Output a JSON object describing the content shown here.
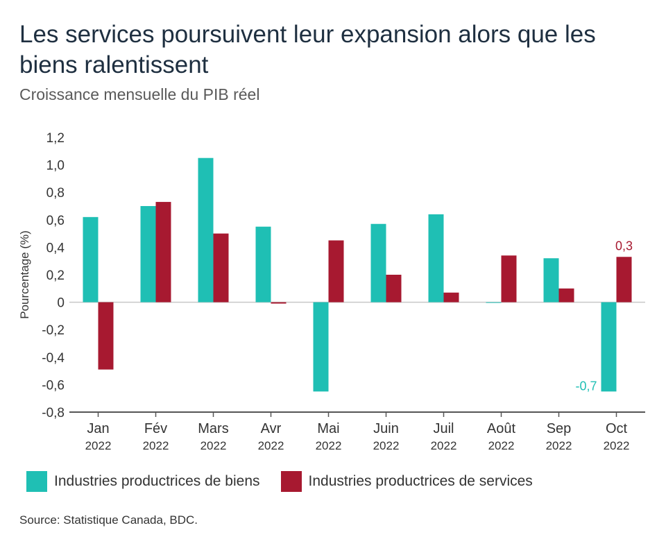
{
  "title": "Les services poursuivent leur expansion alors que les biens ralentissent",
  "subtitle": "Croissance mensuelle du PIB réel",
  "source": "Source: Statistique Canada, BDC.",
  "colors": {
    "goods": "#1fbfb4",
    "services": "#a71930"
  },
  "chart_data": {
    "type": "bar",
    "ylabel": "Pourcentage (%)",
    "ylim": [
      -0.8,
      1.2
    ],
    "yticks": [
      -0.8,
      -0.6,
      -0.4,
      -0.2,
      0,
      0.2,
      0.4,
      0.6,
      0.8,
      1.0,
      1.2
    ],
    "ytick_labels": [
      "-0,8",
      "-0,6",
      "-0,4",
      "-0,2",
      "0",
      "0,2",
      "0,4",
      "0,6",
      "0,8",
      "1,0",
      "1,2"
    ],
    "categories": [
      "Jan",
      "Fév",
      "Mars",
      "Avr",
      "Mai",
      "Juin",
      "Juil",
      "Août",
      "Sep",
      "Oct"
    ],
    "category_years": [
      "2022",
      "2022",
      "2022",
      "2022",
      "2022",
      "2022",
      "2022",
      "2022",
      "2022",
      "2022"
    ],
    "series": [
      {
        "name": "Industries productrices de biens",
        "values": [
          0.62,
          0.7,
          1.05,
          0.55,
          -0.65,
          0.57,
          0.64,
          0.0,
          0.32,
          -0.65
        ]
      },
      {
        "name": "Industries productrices de services",
        "values": [
          -0.49,
          0.73,
          0.5,
          -0.01,
          0.45,
          0.2,
          0.07,
          0.34,
          0.1,
          0.33
        ]
      }
    ],
    "annotations": [
      {
        "series": 0,
        "category": "Oct",
        "text": "-0,7"
      },
      {
        "series": 1,
        "category": "Oct",
        "text": "0,3"
      }
    ],
    "grid": false,
    "legend": "bottom"
  }
}
